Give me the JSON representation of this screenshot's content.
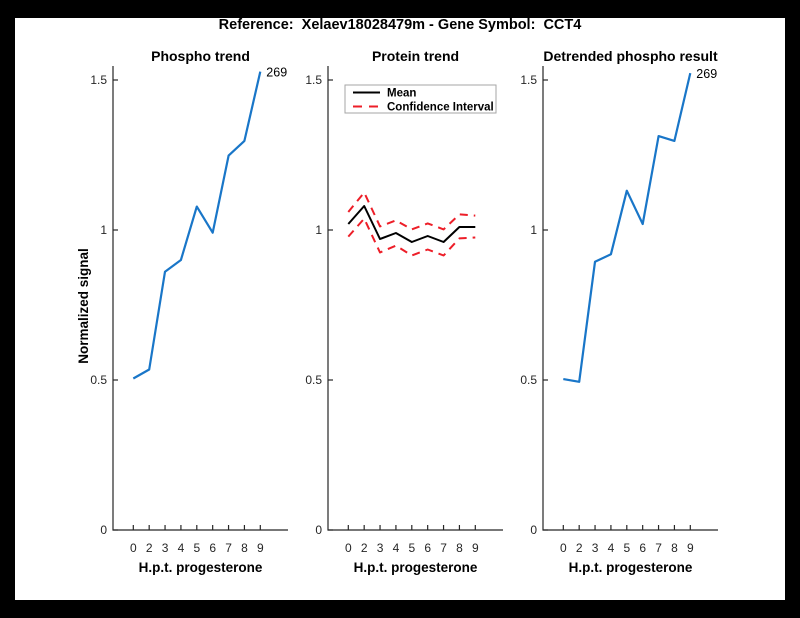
{
  "figure": {
    "title": "Reference:  Xelaev18028479m - Gene Symbol:  CCT4"
  },
  "style": {
    "background": "#ffffff",
    "frame": "#000000",
    "axis_color": "#262626",
    "title_color": "#000000",
    "line_blue": "#1976C8",
    "ci_red": "#ED1E28",
    "mean_black": "#000000",
    "legend_border": "#a6a6a6"
  },
  "chart_data": [
    {
      "type": "line",
      "title": "Phospho trend",
      "xlabel": "H.p.t. progesterone",
      "ylabel": "Normalized signal",
      "x_ticklabels": [
        "0",
        "2",
        "3",
        "4",
        "5",
        "6",
        "7",
        "8",
        "9"
      ],
      "y_tick_values": [
        0,
        0.5,
        1,
        1.5
      ],
      "y_tick_labels": [
        "0",
        "0.5",
        "1",
        "1.5"
      ],
      "ylim": [
        0,
        1.55
      ],
      "grid": false,
      "legend": null,
      "annotation": "269",
      "series": [
        {
          "name": "phospho-trend",
          "color_key": "line_blue",
          "dash": false,
          "width": 2.2,
          "x": [
            0,
            2,
            3,
            4,
            5,
            6,
            7,
            8,
            9
          ],
          "values": [
            0.505,
            0.535,
            0.861,
            0.9,
            1.078,
            0.991,
            1.248,
            1.297,
            1.528
          ]
        }
      ]
    },
    {
      "type": "line",
      "title": "Protein trend",
      "xlabel": "H.p.t. progesterone",
      "ylabel": null,
      "x_ticklabels": [
        "0",
        "2",
        "3",
        "4",
        "5",
        "6",
        "7",
        "8",
        "9"
      ],
      "y_tick_values": [
        0,
        0.5,
        1,
        1.5
      ],
      "y_tick_labels": [
        "0",
        "0.5",
        "1",
        "1.5"
      ],
      "ylim": [
        0,
        1.55
      ],
      "grid": false,
      "legend": {
        "position": "upper-left",
        "entries": [
          {
            "label": "Mean",
            "color_key": "mean_black",
            "dash": false
          },
          {
            "label": "Confidence Interval",
            "color_key": "ci_red",
            "dash": true
          }
        ]
      },
      "annotation": null,
      "series": [
        {
          "name": "protein-mean",
          "color_key": "mean_black",
          "dash": false,
          "width": 2,
          "x": [
            0,
            2,
            3,
            4,
            5,
            6,
            7,
            8,
            9
          ],
          "values": [
            1.02,
            1.08,
            0.97,
            0.99,
            0.96,
            0.98,
            0.96,
            1.01,
            1.01
          ]
        },
        {
          "name": "ci-upper",
          "color_key": "ci_red",
          "dash": true,
          "width": 2,
          "x": [
            0,
            2,
            3,
            4,
            5,
            6,
            7,
            8,
            9
          ],
          "values": [
            1.06,
            1.125,
            1.012,
            1.032,
            1.002,
            1.022,
            1.002,
            1.052,
            1.048
          ]
        },
        {
          "name": "ci-lower",
          "color_key": "ci_red",
          "dash": true,
          "width": 2,
          "x": [
            0,
            2,
            3,
            4,
            5,
            6,
            7,
            8,
            9
          ],
          "values": [
            0.978,
            1.038,
            0.925,
            0.948,
            0.915,
            0.935,
            0.915,
            0.972,
            0.975
          ]
        }
      ]
    },
    {
      "type": "line",
      "title": "Detrended phospho result",
      "xlabel": "H.p.t. progesterone",
      "ylabel": null,
      "x_ticklabels": [
        "0",
        "2",
        "3",
        "4",
        "5",
        "6",
        "7",
        "8",
        "9"
      ],
      "y_tick_values": [
        0,
        0.5,
        1,
        1.5
      ],
      "y_tick_labels": [
        "0",
        "0.5",
        "1",
        "1.5"
      ],
      "ylim": [
        0,
        1.55
      ],
      "grid": false,
      "legend": null,
      "annotation": "269",
      "series": [
        {
          "name": "detrended-phospho",
          "color_key": "line_blue",
          "dash": false,
          "width": 2.2,
          "x": [
            0,
            2,
            3,
            4,
            5,
            6,
            7,
            8,
            9
          ],
          "values": [
            0.503,
            0.494,
            0.894,
            0.919,
            1.131,
            1.02,
            1.313,
            1.297,
            1.523
          ]
        }
      ]
    }
  ]
}
